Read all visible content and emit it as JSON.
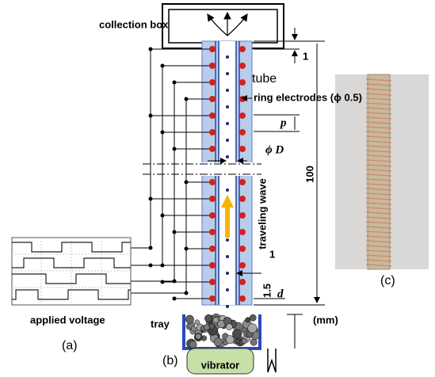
{
  "labels": {
    "collection_box": "collection box",
    "gap_top": "1",
    "tube": "tube",
    "ring_electrodes": "ring electrodes (ϕ 0.5)",
    "pitch": "p",
    "diameter": "ϕ D",
    "length": "100",
    "traveling_wave": "traveling wave",
    "gap_side": "1",
    "gap_bottom": "1.5",
    "depth": "d",
    "unit": "(mm)",
    "applied_voltage": "applied voltage",
    "panel_a": "(a)",
    "tray": "tray",
    "panel_b": "(b)",
    "vibrator": "vibrator",
    "panel_c": "(c)"
  }
}
